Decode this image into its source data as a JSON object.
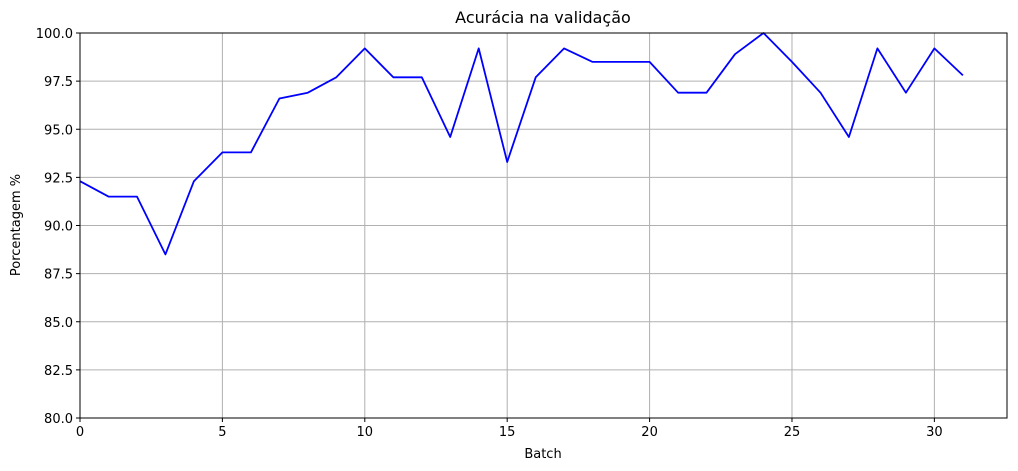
{
  "chart_data": {
    "type": "line",
    "title": "Acurácia na validação",
    "xlabel": "Batch",
    "ylabel": "Porcentagem %",
    "xlim": [
      0,
      32.55
    ],
    "ylim": [
      80,
      100
    ],
    "xticks": [
      "0",
      "5",
      "10",
      "15",
      "20",
      "25",
      "30"
    ],
    "yticks": [
      "80.0",
      "82.5",
      "85.0",
      "87.5",
      "90.0",
      "92.5",
      "95.0",
      "97.5",
      "100.0"
    ],
    "grid": true,
    "line_color": "#0000ff",
    "x": [
      0,
      1,
      2,
      3,
      4,
      5,
      6,
      7,
      8,
      9,
      10,
      11,
      12,
      13,
      14,
      15,
      16,
      17,
      18,
      19,
      20,
      21,
      22,
      23,
      24,
      25,
      26,
      27,
      28,
      29,
      30,
      31
    ],
    "series": [
      {
        "values": [
          92.3,
          91.5,
          91.5,
          88.5,
          92.3,
          93.8,
          93.8,
          96.6,
          96.9,
          97.7,
          99.2,
          97.7,
          97.7,
          94.6,
          99.2,
          93.3,
          97.7,
          99.2,
          98.5,
          98.5,
          98.5,
          96.9,
          96.9,
          98.9,
          100.0,
          98.5,
          96.9,
          94.6,
          99.2,
          96.9,
          99.2,
          97.8
        ]
      }
    ]
  }
}
